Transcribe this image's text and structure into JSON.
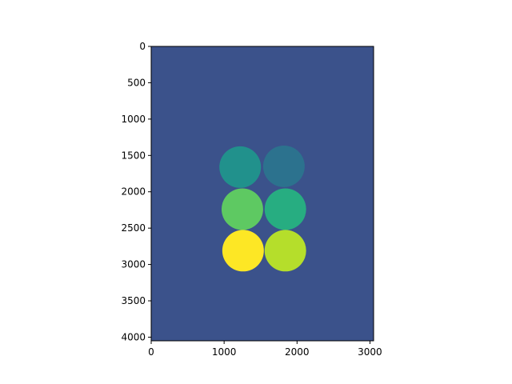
{
  "chart_data": {
    "type": "heatmap",
    "title": "",
    "xlabel": "",
    "ylabel": "",
    "xlim": [
      0,
      3050
    ],
    "ylim": [
      4050,
      0
    ],
    "x_ticks": [
      0,
      1000,
      2000,
      3000
    ],
    "y_ticks": [
      0,
      500,
      1000,
      1500,
      2000,
      2500,
      3000,
      3500,
      4000
    ],
    "grid": false,
    "colormap": "viridis",
    "background_color": "#3b528b",
    "circles": [
      {
        "x": 1220,
        "y": 1660,
        "radius": 285,
        "color": "#21918c"
      },
      {
        "x": 1820,
        "y": 1650,
        "radius": 285,
        "color": "#2c728e"
      },
      {
        "x": 1250,
        "y": 2240,
        "radius": 285,
        "color": "#5ec962"
      },
      {
        "x": 1840,
        "y": 2240,
        "radius": 285,
        "color": "#27ad81"
      },
      {
        "x": 1260,
        "y": 2810,
        "radius": 285,
        "color": "#fde725"
      },
      {
        "x": 1840,
        "y": 2810,
        "radius": 285,
        "color": "#b5de2b"
      }
    ]
  }
}
